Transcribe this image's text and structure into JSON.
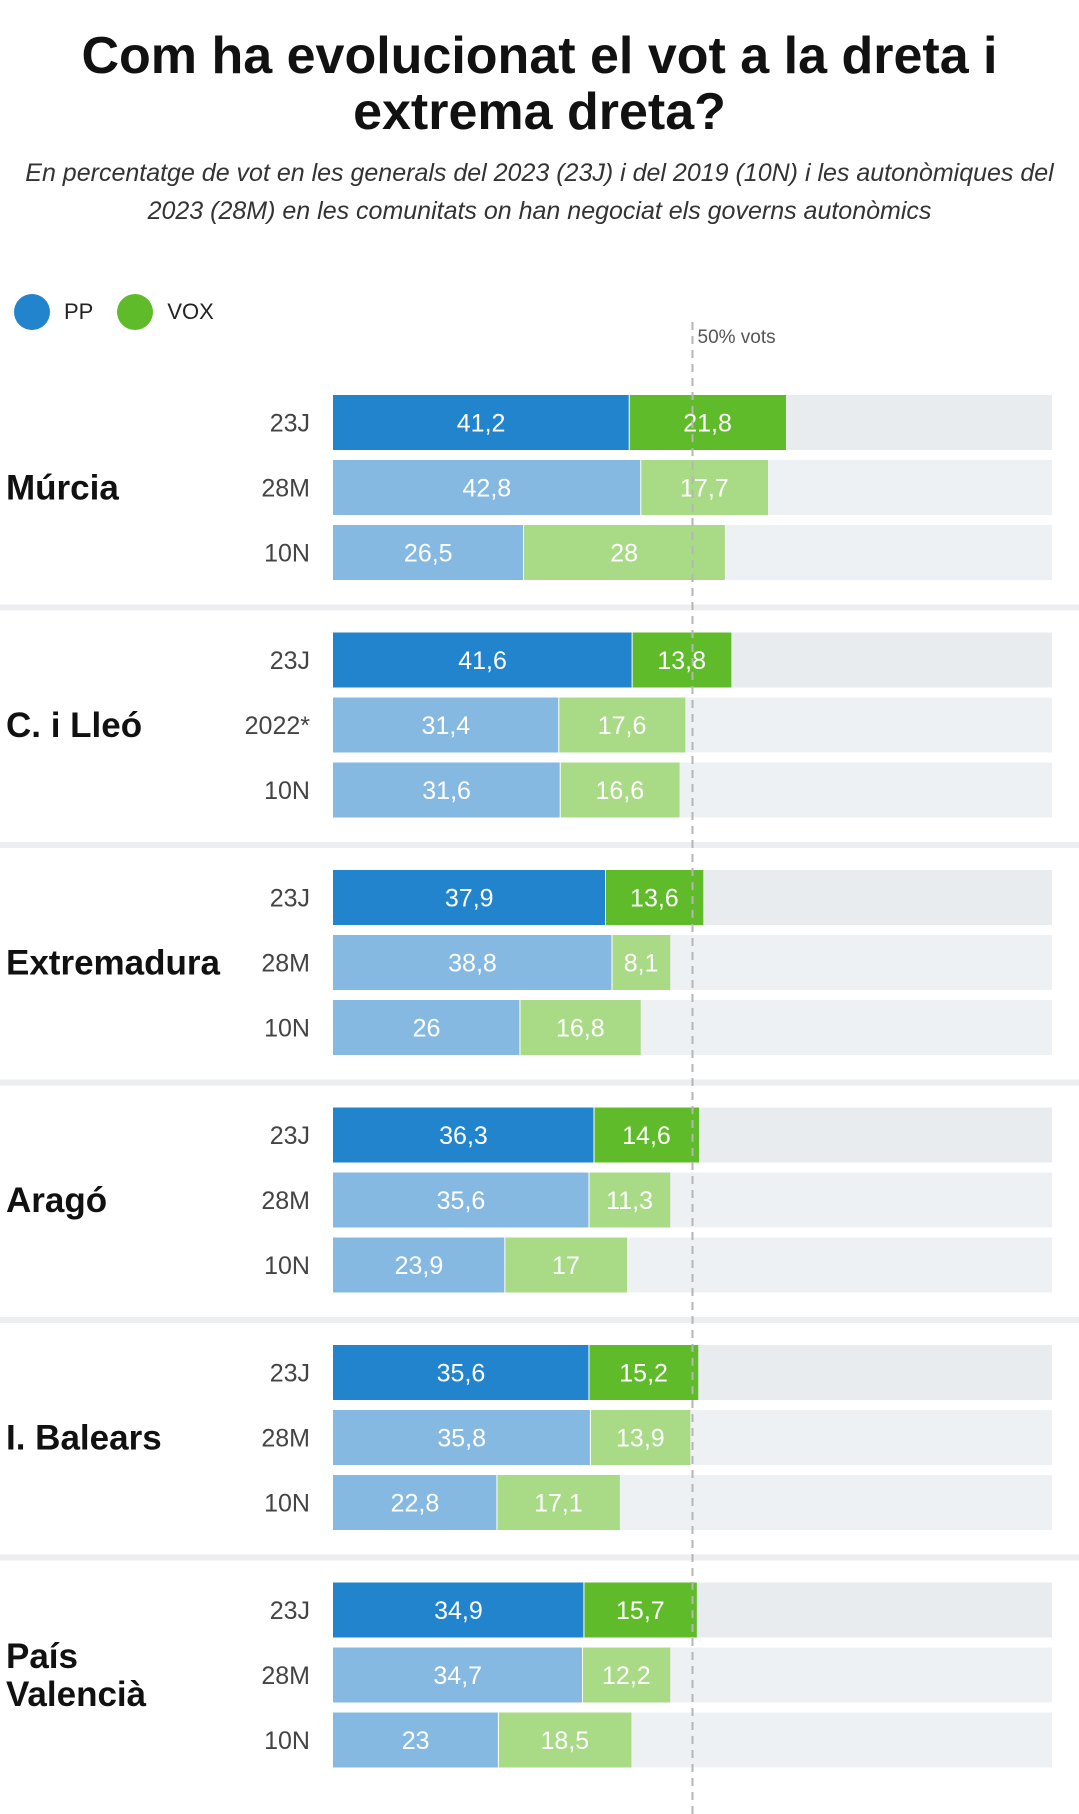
{
  "title": "Com ha evolucionat el vot a la dreta i extrema dreta?",
  "subtitle": "En percentatge de vot en les generals del 2023 (23J) i del 2019 (10N) i les autonòmiques del 2023 (28M) en les comunitats on han negociat els governs autonòmics",
  "colors": {
    "pp_dark": "#2284cd",
    "pp_light": "#86b9e1",
    "vox_dark": "#5fbb29",
    "vox_light": "#a9db87",
    "track_dark": "#e9ecef",
    "track_light": "#eef1f4",
    "separator": "#eceef0",
    "reference": "#b5b5b5"
  },
  "legend": [
    {
      "label": "PP",
      "color": "#2284cd"
    },
    {
      "label": "VOX",
      "color": "#5fbb29"
    }
  ],
  "chart_data": {
    "type": "bar",
    "orientation": "horizontal",
    "stacked": true,
    "xlim": [
      0,
      100
    ],
    "reference_line": {
      "value": 50,
      "label": "50% vots"
    },
    "series_names": [
      "PP",
      "VOX"
    ],
    "groups": [
      {
        "region": "Múrcia",
        "rows": [
          {
            "label": "23J",
            "pp": 41.2,
            "vox": 21.8,
            "pp_label": "41,2",
            "vox_label": "21,8"
          },
          {
            "label": "28M",
            "pp": 42.8,
            "vox": 17.7,
            "pp_label": "42,8",
            "vox_label": "17,7"
          },
          {
            "label": "10N",
            "pp": 26.5,
            "vox": 28,
            "pp_label": "26,5",
            "vox_label": "28"
          }
        ]
      },
      {
        "region": "C. i Lleó",
        "rows": [
          {
            "label": "23J",
            "pp": 41.6,
            "vox": 13.8,
            "pp_label": "41,6",
            "vox_label": "13,8"
          },
          {
            "label": "2022*",
            "pp": 31.4,
            "vox": 17.6,
            "pp_label": "31,4",
            "vox_label": "17,6"
          },
          {
            "label": "10N",
            "pp": 31.6,
            "vox": 16.6,
            "pp_label": "31,6",
            "vox_label": "16,6"
          }
        ]
      },
      {
        "region": "Extremadura",
        "rows": [
          {
            "label": "23J",
            "pp": 37.9,
            "vox": 13.6,
            "pp_label": "37,9",
            "vox_label": "13,6"
          },
          {
            "label": "28M",
            "pp": 38.8,
            "vox": 8.1,
            "pp_label": "38,8",
            "vox_label": "8,1"
          },
          {
            "label": "10N",
            "pp": 26,
            "vox": 16.8,
            "pp_label": "26",
            "vox_label": "16,8"
          }
        ]
      },
      {
        "region": "Aragó",
        "rows": [
          {
            "label": "23J",
            "pp": 36.3,
            "vox": 14.6,
            "pp_label": "36,3",
            "vox_label": "14,6"
          },
          {
            "label": "28M",
            "pp": 35.6,
            "vox": 11.3,
            "pp_label": "35,6",
            "vox_label": "11,3"
          },
          {
            "label": "10N",
            "pp": 23.9,
            "vox": 17,
            "pp_label": "23,9",
            "vox_label": "17"
          }
        ]
      },
      {
        "region": "I. Balears",
        "rows": [
          {
            "label": "23J",
            "pp": 35.6,
            "vox": 15.2,
            "pp_label": "35,6",
            "vox_label": "15,2"
          },
          {
            "label": "28M",
            "pp": 35.8,
            "vox": 13.9,
            "pp_label": "35,8",
            "vox_label": "13,9"
          },
          {
            "label": "10N",
            "pp": 22.8,
            "vox": 17.1,
            "pp_label": "22,8",
            "vox_label": "17,1"
          }
        ]
      },
      {
        "region": "País Valencià",
        "region_lines": [
          "País",
          "Valencià"
        ],
        "rows": [
          {
            "label": "23J",
            "pp": 34.9,
            "vox": 15.7,
            "pp_label": "34,9",
            "vox_label": "15,7"
          },
          {
            "label": "28M",
            "pp": 34.7,
            "vox": 12.2,
            "pp_label": "34,7",
            "vox_label": "12,2"
          },
          {
            "label": "10N",
            "pp": 23,
            "vox": 18.5,
            "pp_label": "23",
            "vox_label": "18,5"
          }
        ]
      }
    ]
  }
}
